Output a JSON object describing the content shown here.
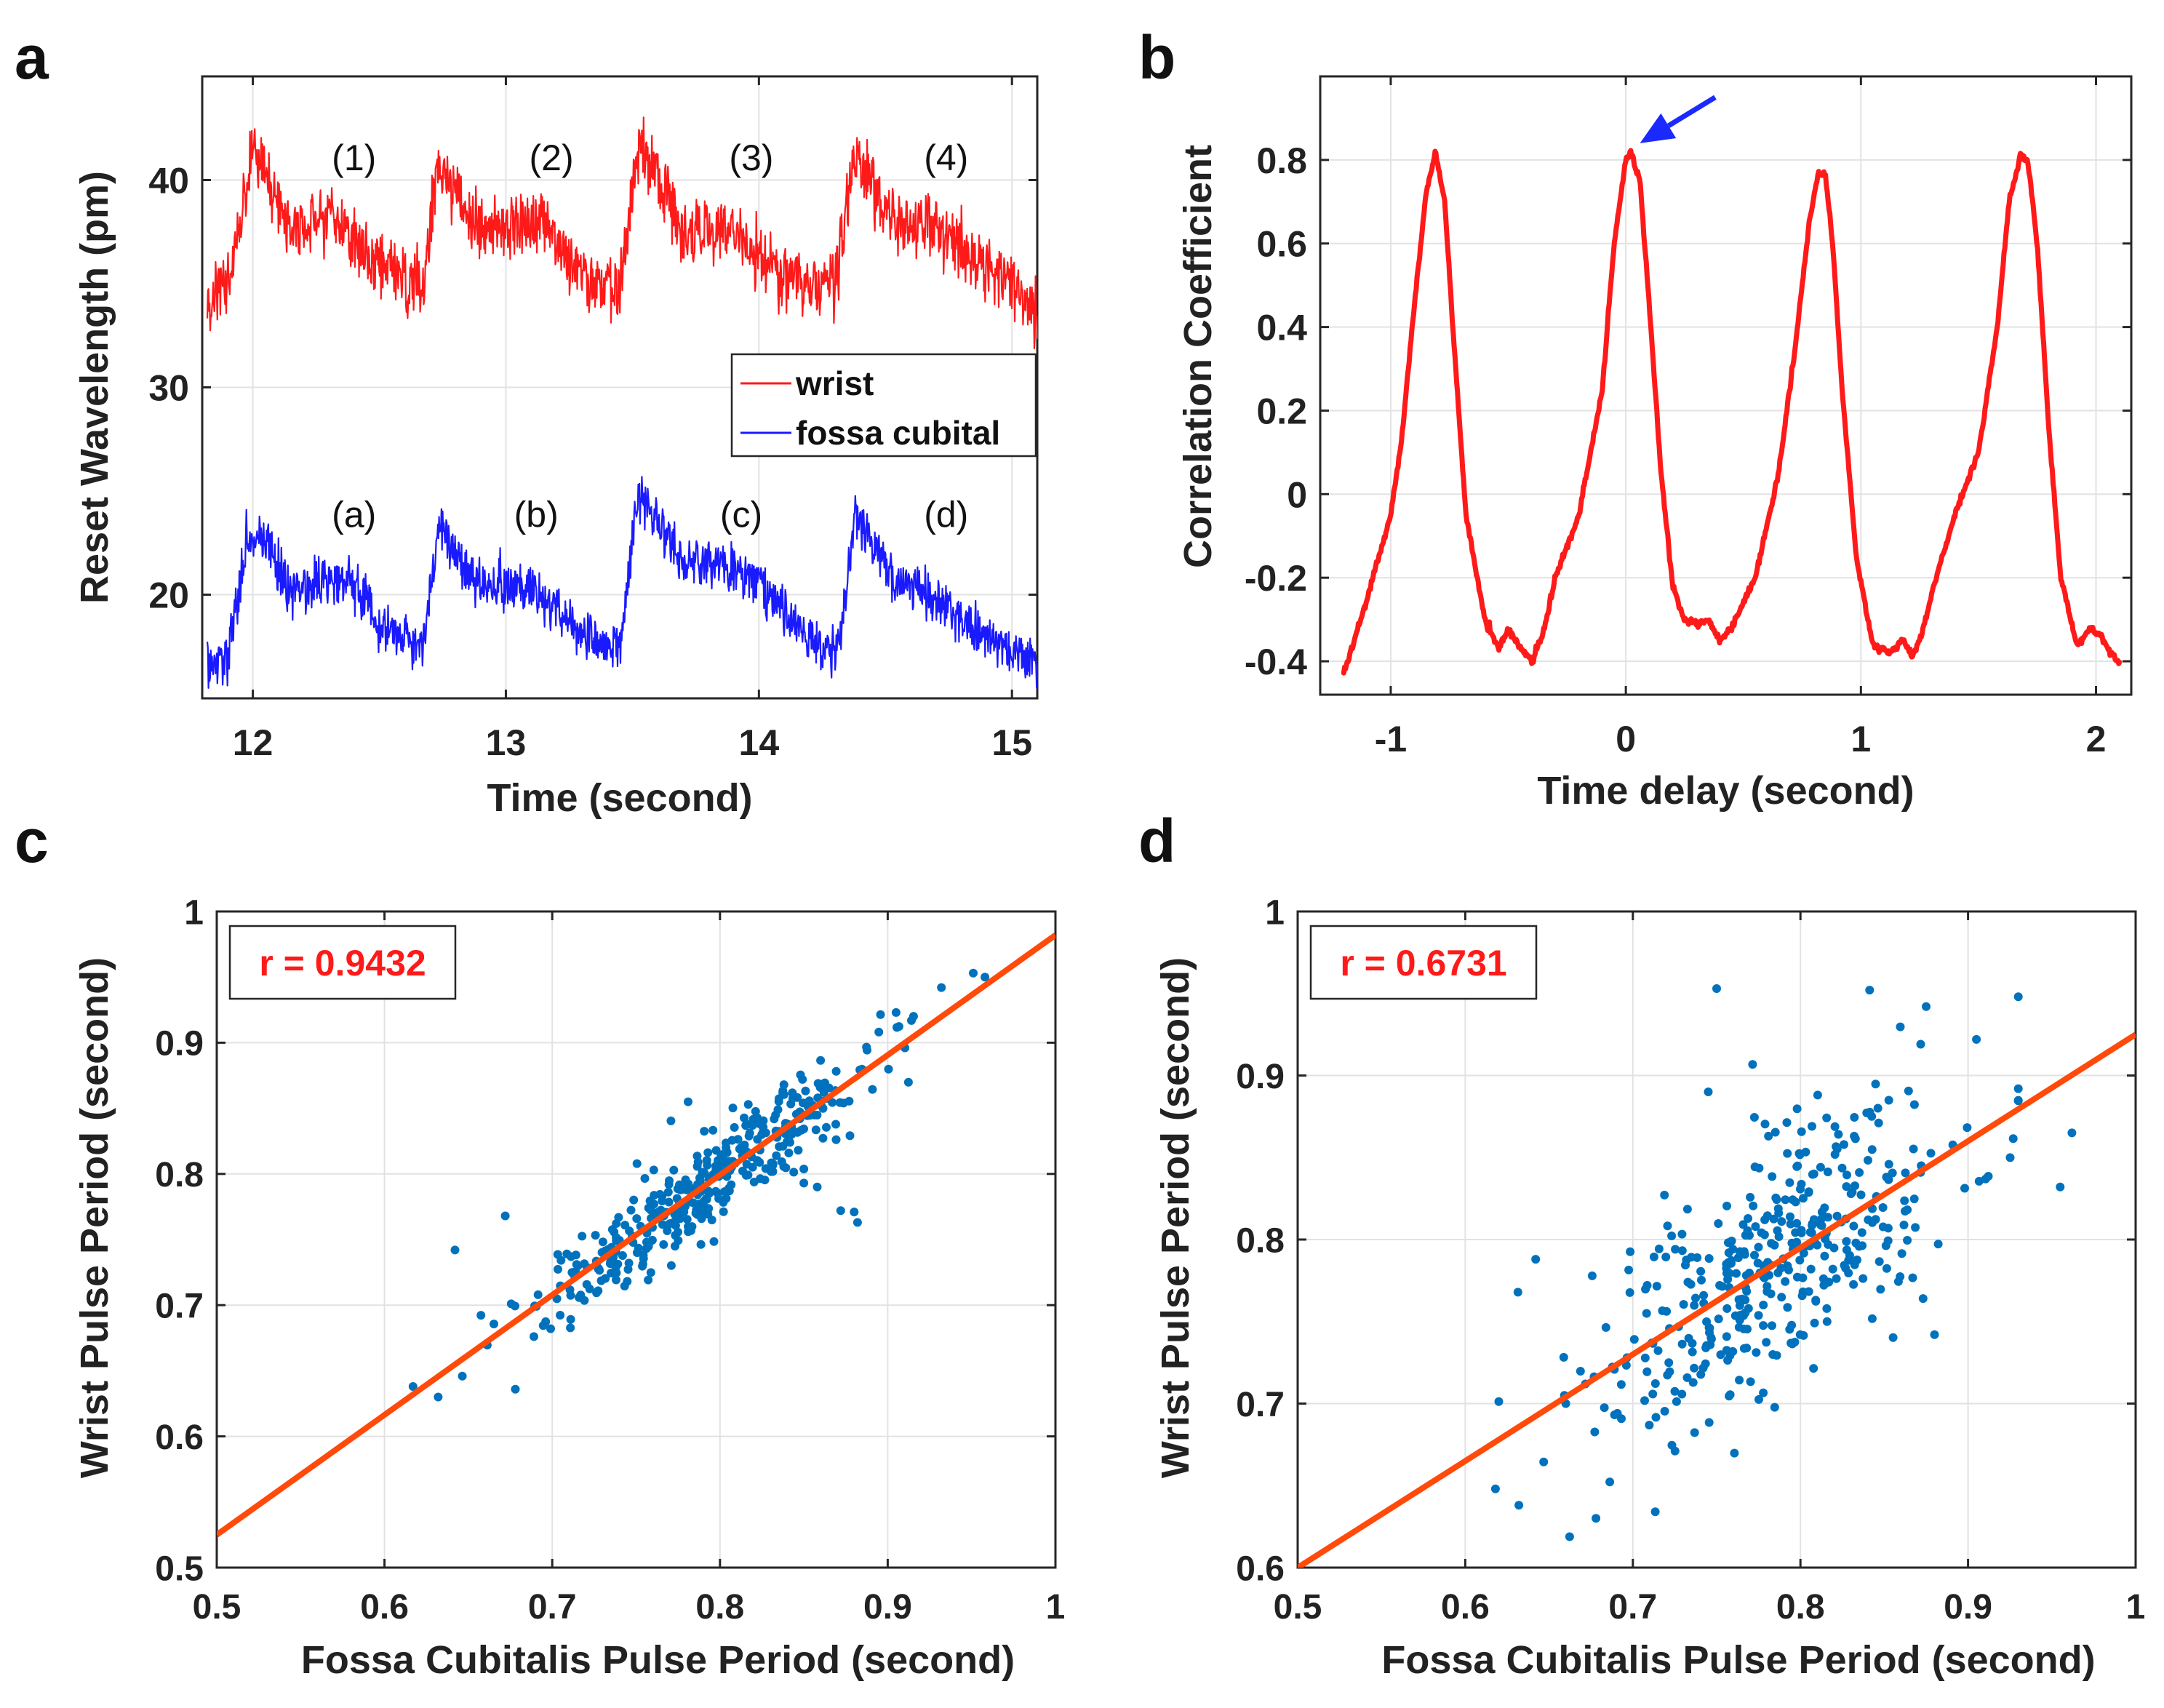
{
  "colors": {
    "red": "#ff1a1a",
    "blue": "#1a1aff",
    "scatter": "#0072bd",
    "fit": "#ff4a0a",
    "arrow": "#1a2aff",
    "grid": "#e2e2e2",
    "axis": "#262626"
  },
  "chart_data": [
    {
      "id": "a",
      "panel_label": "a",
      "type": "line",
      "xlabel": "Time  (second)",
      "ylabel": "Reset Wavelength  (pm)",
      "xlim": [
        11.8,
        15.1
      ],
      "ylim": [
        15,
        45
      ],
      "xticks": [
        12,
        13,
        14,
        15
      ],
      "xtick_labels": [
        "12",
        "13",
        "14",
        "15"
      ],
      "yticks": [
        20,
        30,
        40
      ],
      "ytick_labels": [
        "20",
        "30",
        "40"
      ],
      "legend": {
        "position": "middle-right",
        "entries": [
          "wrist",
          "fossa cubital"
        ]
      },
      "annotations": [
        {
          "text": "(1)",
          "x": 12.4,
          "y": 41.1
        },
        {
          "text": "(2)",
          "x": 13.18,
          "y": 41.1
        },
        {
          "text": "(3)",
          "x": 13.97,
          "y": 41.1
        },
        {
          "text": "(4)",
          "x": 14.74,
          "y": 41.1
        },
        {
          "text": "(a)",
          "x": 12.4,
          "y": 23.9
        },
        {
          "text": "(b)",
          "x": 13.12,
          "y": 23.9
        },
        {
          "text": "(c)",
          "x": 13.93,
          "y": 23.9
        },
        {
          "text": "(d)",
          "x": 14.74,
          "y": 23.9
        }
      ],
      "series": [
        {
          "name": "wrist",
          "color": "#ff1a1a",
          "noise": 1.2,
          "x": [
            11.82,
            11.9,
            11.95,
            12.0,
            12.05,
            12.15,
            12.3,
            12.4,
            12.5,
            12.6,
            12.67,
            12.73,
            12.78,
            12.9,
            13.05,
            13.15,
            13.3,
            13.45,
            13.52,
            13.58,
            13.7,
            13.85,
            14.0,
            14.15,
            14.3,
            14.38,
            14.45,
            14.6,
            14.7,
            14.85,
            15.0,
            15.1
          ],
          "y": [
            34.5,
            34.8,
            37.5,
            42.0,
            40.5,
            37.5,
            38.5,
            36.8,
            36.0,
            35.2,
            34.8,
            40.5,
            40.0,
            37.5,
            37.8,
            38.0,
            35.5,
            34.5,
            41.8,
            40.5,
            37.5,
            38.0,
            36.0,
            35.0,
            34.8,
            41.5,
            39.5,
            37.5,
            38.0,
            36.0,
            35.0,
            33.5
          ]
        },
        {
          "name": "fossa cubital",
          "color": "#1a1aff",
          "noise": 0.9,
          "x": [
            11.82,
            11.9,
            11.95,
            11.98,
            12.05,
            12.15,
            12.3,
            12.42,
            12.5,
            12.6,
            12.67,
            12.74,
            12.8,
            12.9,
            13.0,
            13.1,
            13.25,
            13.4,
            13.45,
            13.52,
            13.58,
            13.7,
            13.85,
            14.0,
            14.15,
            14.25,
            14.32,
            14.38,
            14.45,
            14.55,
            14.7,
            14.85,
            15.0,
            15.1
          ],
          "y": [
            16.5,
            17.0,
            20.5,
            23.0,
            22.5,
            20.0,
            20.8,
            20.3,
            18.5,
            17.8,
            17.5,
            23.5,
            22.0,
            20.5,
            20.5,
            20.5,
            18.5,
            17.5,
            17.5,
            24.5,
            24.0,
            21.5,
            21.5,
            20.5,
            18.5,
            17.5,
            17.5,
            24.0,
            22.5,
            20.5,
            20.0,
            18.5,
            17.2,
            16.8
          ]
        }
      ]
    },
    {
      "id": "b",
      "panel_label": "b",
      "type": "line",
      "xlabel": "Time delay  (second)",
      "ylabel": "Correlation Coefficient",
      "xlim": [
        -1.3,
        2.15
      ],
      "ylim": [
        -0.48,
        1.0
      ],
      "xticks": [
        -1,
        0,
        1,
        2
      ],
      "xtick_labels": [
        "-1",
        "0",
        "1",
        "2"
      ],
      "yticks": [
        -0.4,
        -0.2,
        0,
        0.2,
        0.4,
        0.6,
        0.8
      ],
      "ytick_labels": [
        "-0.4",
        "-0.2",
        "0",
        "0.2",
        "0.4",
        "0.6",
        "0.8"
      ],
      "arrow": {
        "from": [
          0.38,
          0.95
        ],
        "to": [
          0.06,
          0.84
        ]
      },
      "series": [
        {
          "name": "correlation",
          "color": "#ff1a1a",
          "noise": 0.004,
          "x": [
            -1.2,
            -1.1,
            -1.0,
            -0.95,
            -0.9,
            -0.85,
            -0.81,
            -0.77,
            -0.73,
            -0.68,
            -0.6,
            -0.54,
            -0.5,
            -0.46,
            -0.4,
            -0.35,
            -0.3,
            -0.2,
            -0.1,
            -0.05,
            0.0,
            0.02,
            0.06,
            0.1,
            0.15,
            0.2,
            0.25,
            0.3,
            0.35,
            0.4,
            0.45,
            0.55,
            0.65,
            0.72,
            0.78,
            0.82,
            0.85,
            0.88,
            0.92,
            0.98,
            1.05,
            1.12,
            1.18,
            1.22,
            1.26,
            1.32,
            1.4,
            1.5,
            1.58,
            1.63,
            1.68,
            1.71,
            1.75,
            1.8,
            1.85,
            1.92,
            1.98,
            2.02,
            2.06,
            2.1
          ],
          "y": [
            -0.43,
            -0.25,
            -0.05,
            0.15,
            0.45,
            0.72,
            0.82,
            0.7,
            0.35,
            -0.05,
            -0.3,
            -0.37,
            -0.32,
            -0.36,
            -0.4,
            -0.33,
            -0.2,
            -0.05,
            0.25,
            0.6,
            0.8,
            0.82,
            0.75,
            0.45,
            0.05,
            -0.22,
            -0.3,
            -0.31,
            -0.3,
            -0.35,
            -0.32,
            -0.2,
            0.05,
            0.35,
            0.65,
            0.77,
            0.76,
            0.6,
            0.25,
            -0.15,
            -0.36,
            -0.38,
            -0.35,
            -0.39,
            -0.33,
            -0.2,
            -0.05,
            0.1,
            0.4,
            0.7,
            0.81,
            0.8,
            0.6,
            0.15,
            -0.2,
            -0.36,
            -0.32,
            -0.34,
            -0.38,
            -0.4
          ]
        }
      ]
    },
    {
      "id": "c",
      "panel_label": "c",
      "type": "scatter",
      "xlabel": "Fossa Cubitalis Pulse Period  (second)",
      "ylabel": "Wrist Pulse Period  (second)",
      "xlim": [
        0.5,
        1.0
      ],
      "ylim": [
        0.5,
        1.0
      ],
      "xticks": [
        0.5,
        0.6,
        0.7,
        0.8,
        0.9,
        1.0
      ],
      "xtick_labels": [
        "0.5",
        "0.6",
        "0.7",
        "0.8",
        "0.9",
        "1"
      ],
      "yticks": [
        0.5,
        0.6,
        0.7,
        0.8,
        0.9,
        1.0
      ],
      "ytick_labels": [
        "0.5",
        "0.6",
        "0.7",
        "0.8",
        "0.9",
        "1"
      ],
      "r_text": "r = 0.9432",
      "fit_line": {
        "x": [
          0.5,
          1.0
        ],
        "y": [
          0.525,
          0.982
        ]
      },
      "point_count": 400,
      "x_center": 0.795,
      "x_spread": 0.055,
      "residual_spread": 0.018,
      "outliers": [
        [
          0.617,
          0.638
        ],
        [
          0.632,
          0.63
        ],
        [
          0.642,
          0.742
        ],
        [
          0.672,
          0.768
        ],
        [
          0.678,
          0.636
        ],
        [
          0.858,
          0.79
        ],
        [
          0.872,
          0.772
        ],
        [
          0.882,
          0.763
        ],
        [
          0.88,
          0.771
        ],
        [
          0.932,
          0.942
        ],
        [
          0.951,
          0.953
        ],
        [
          0.958,
          0.95
        ],
        [
          0.905,
          0.923
        ],
        [
          0.85,
          0.793
        ],
        [
          0.781,
          0.855
        ]
      ]
    },
    {
      "id": "d",
      "panel_label": "d",
      "type": "scatter",
      "xlabel": "Fossa Cubitalis Pulse Period  (second)",
      "ylabel": "Wrist Pulse Period  (second)",
      "xlim": [
        0.5,
        1.0
      ],
      "ylim": [
        0.6,
        1.0
      ],
      "xticks": [
        0.5,
        0.6,
        0.7,
        0.8,
        0.9,
        1.0
      ],
      "xtick_labels": [
        "0.5",
        "0.6",
        "0.7",
        "0.8",
        "0.9",
        "1"
      ],
      "yticks": [
        0.6,
        0.7,
        0.8,
        0.9,
        1.0
      ],
      "ytick_labels": [
        "0.6",
        "0.7",
        "0.8",
        "0.9",
        "1"
      ],
      "r_text": "r = 0.6731",
      "fit_line": {
        "x": [
          0.5,
          1.0
        ],
        "y": [
          0.6,
          0.925
        ]
      },
      "point_count": 400,
      "x_center": 0.785,
      "x_spread": 0.058,
      "residual_spread": 0.04,
      "outliers": [
        [
          0.618,
          0.648
        ],
        [
          0.632,
          0.638
        ],
        [
          0.642,
          0.788
        ],
        [
          0.678,
          0.63
        ],
        [
          0.75,
          0.953
        ],
        [
          0.745,
          0.89
        ],
        [
          0.93,
          0.948
        ],
        [
          0.905,
          0.922
        ],
        [
          0.962,
          0.865
        ],
        [
          0.955,
          0.832
        ],
        [
          0.875,
          0.942
        ],
        [
          0.88,
          0.742
        ],
        [
          0.66,
          0.7
        ]
      ]
    }
  ]
}
